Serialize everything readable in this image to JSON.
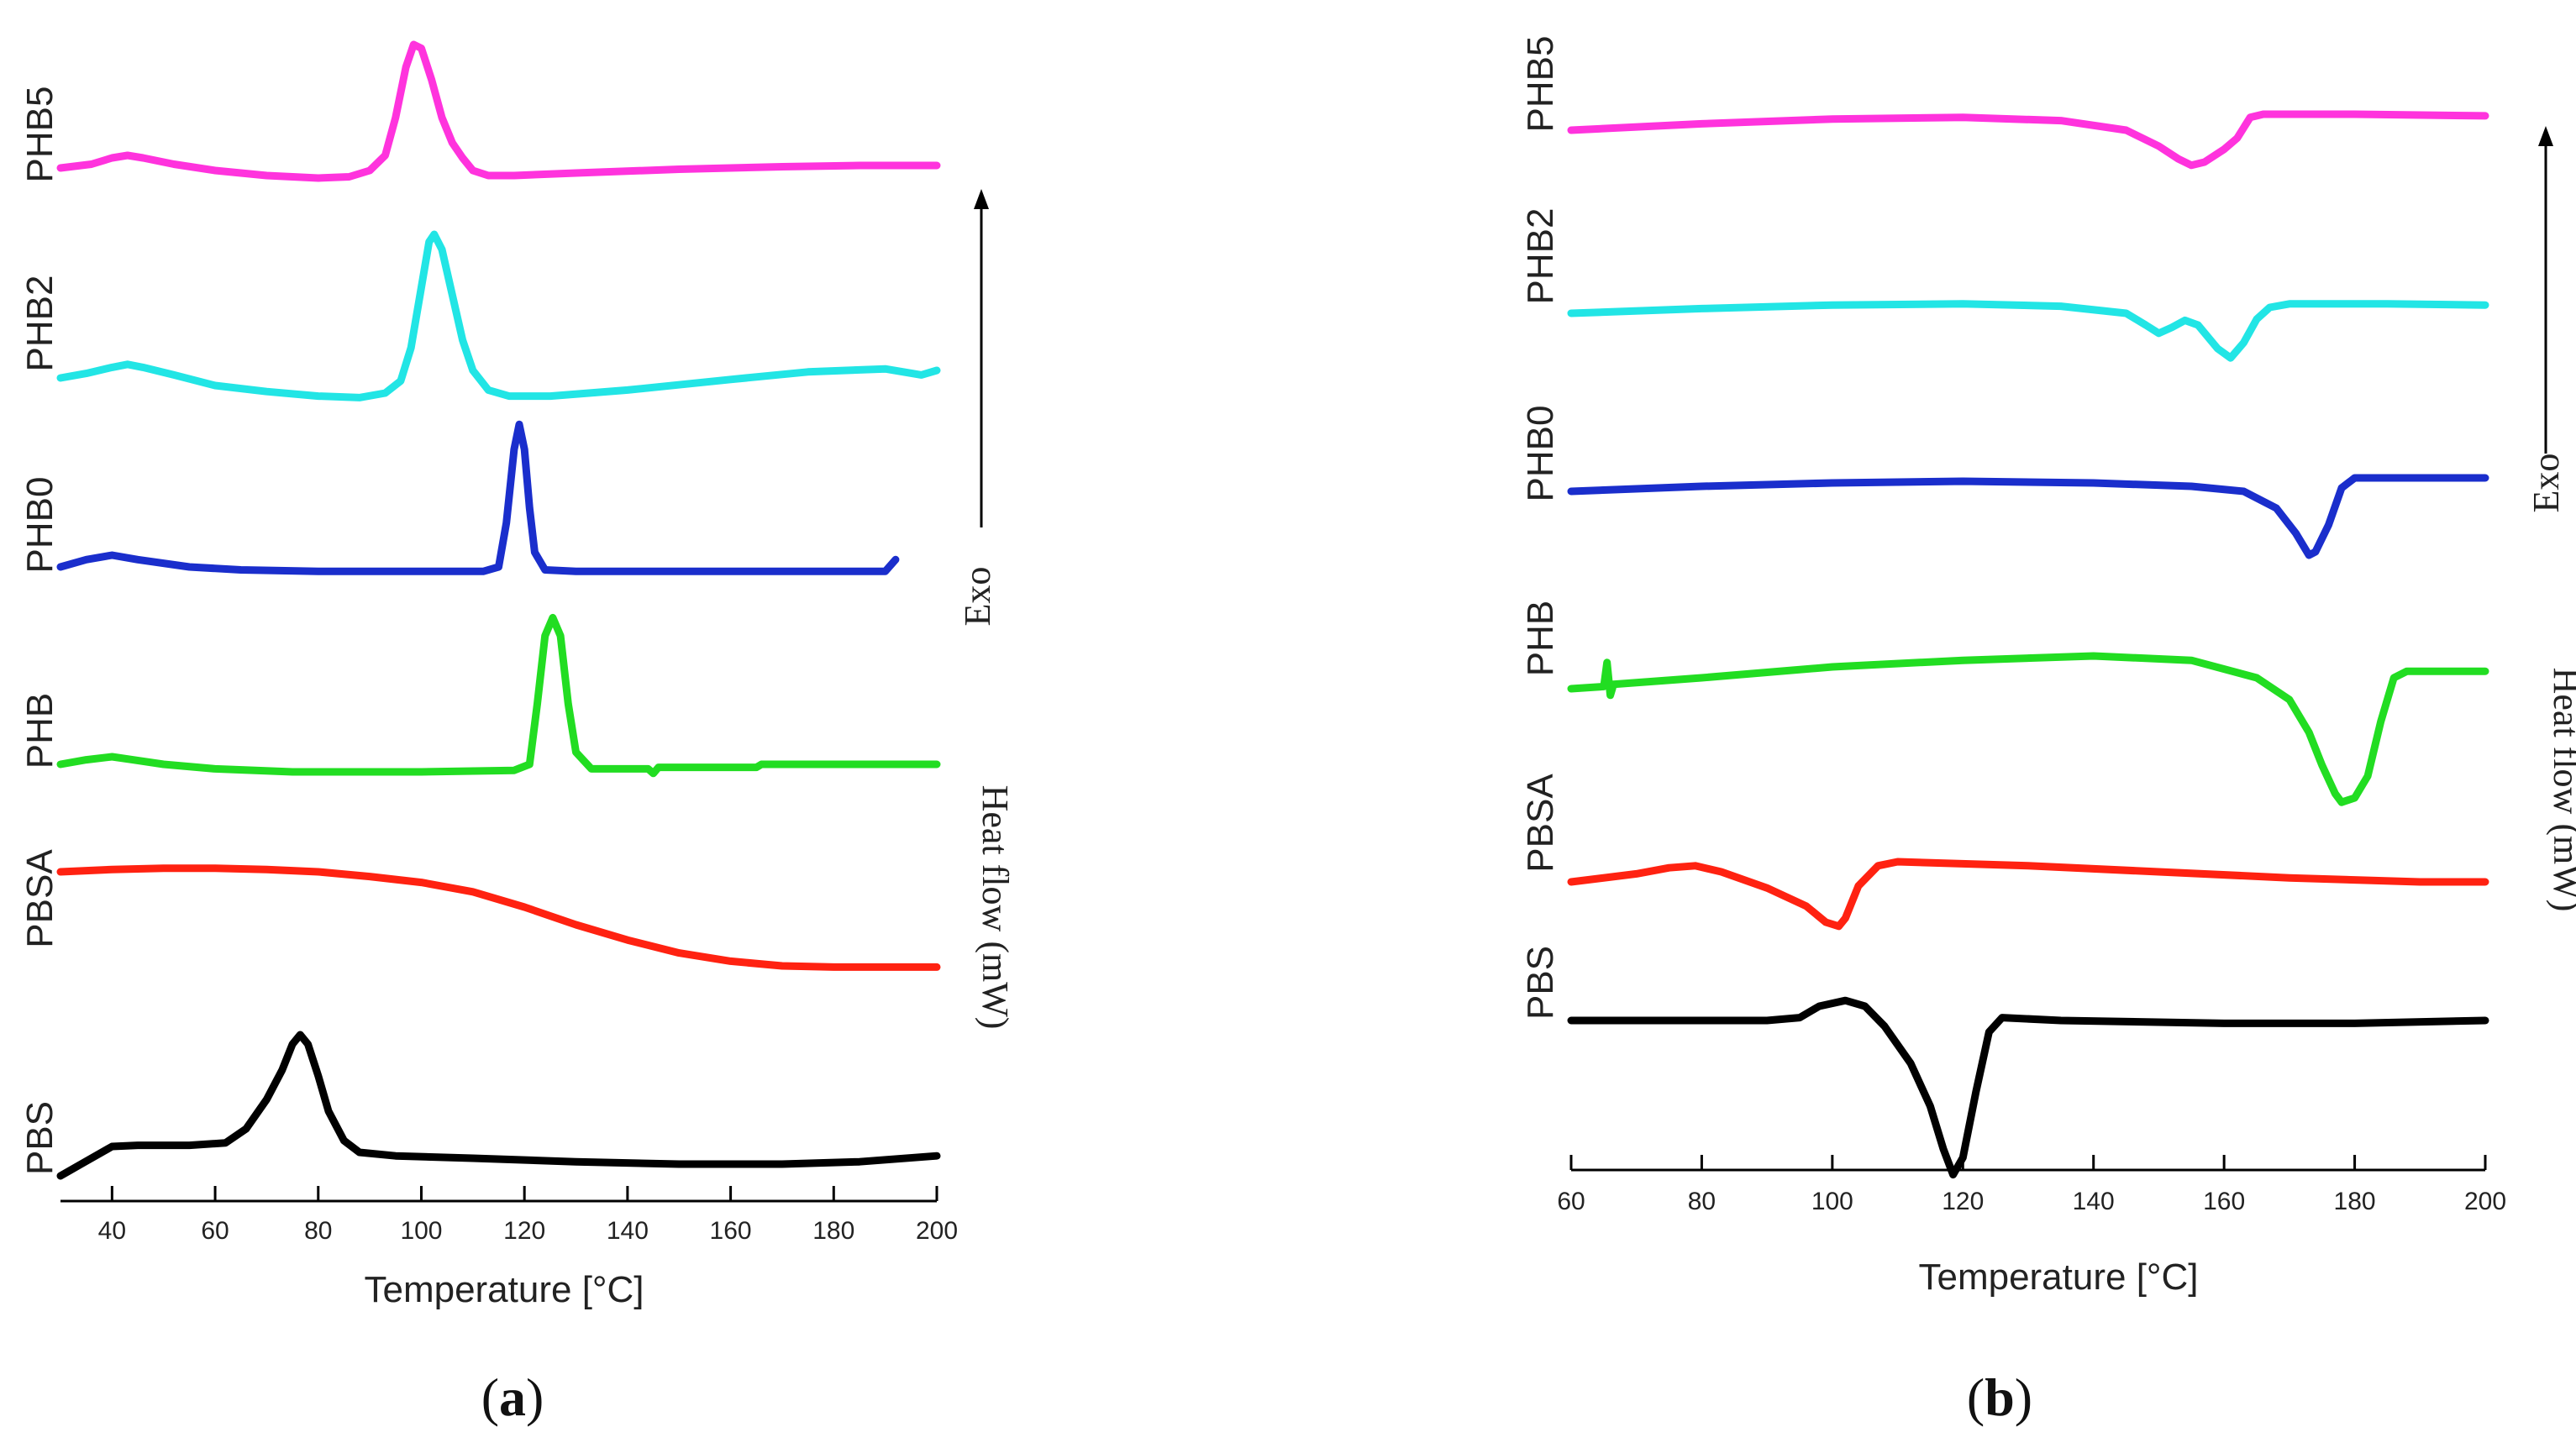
{
  "chart_data": [
    {
      "type": "line",
      "panel": "a",
      "panel_label_open": "(",
      "panel_label_letter": "a",
      "panel_label_close": ")",
      "xlabel": "Temperature [°C]",
      "ylabel": "Heat flow (mW)",
      "arrow_label": "Exo",
      "xlim": [
        30,
        200
      ],
      "ticks": [
        40,
        60,
        80,
        100,
        120,
        140,
        160,
        180,
        200
      ],
      "series": [
        {
          "name": "PHB5",
          "color": "#ff33dd",
          "points": [
            [
              30,
              0.0
            ],
            [
              36,
              0.03
            ],
            [
              40,
              0.08
            ],
            [
              43,
              0.1
            ],
            [
              46,
              0.08
            ],
            [
              52,
              0.03
            ],
            [
              60,
              -0.02
            ],
            [
              70,
              -0.06
            ],
            [
              80,
              -0.08
            ],
            [
              86,
              -0.07
            ],
            [
              90,
              -0.02
            ],
            [
              93,
              0.1
            ],
            [
              95,
              0.4
            ],
            [
              97,
              0.8
            ],
            [
              98.5,
              0.98
            ],
            [
              100,
              0.95
            ],
            [
              102,
              0.7
            ],
            [
              104,
              0.4
            ],
            [
              106,
              0.2
            ],
            [
              108,
              0.08
            ],
            [
              110,
              -0.02
            ],
            [
              113,
              -0.06
            ],
            [
              118,
              -0.06
            ],
            [
              130,
              -0.04
            ],
            [
              150,
              -0.01
            ],
            [
              170,
              0.01
            ],
            [
              185,
              0.02
            ],
            [
              200,
              0.02
            ]
          ]
        },
        {
          "name": "PHB2",
          "color": "#22e5e5",
          "points": [
            [
              30,
              0.0
            ],
            [
              35,
              0.03
            ],
            [
              40,
              0.07
            ],
            [
              43,
              0.09
            ],
            [
              46,
              0.07
            ],
            [
              52,
              0.02
            ],
            [
              60,
              -0.05
            ],
            [
              70,
              -0.09
            ],
            [
              80,
              -0.12
            ],
            [
              88,
              -0.13
            ],
            [
              93,
              -0.1
            ],
            [
              96,
              -0.02
            ],
            [
              98,
              0.2
            ],
            [
              100,
              0.6
            ],
            [
              101.5,
              0.9
            ],
            [
              102.5,
              0.95
            ],
            [
              104,
              0.85
            ],
            [
              106,
              0.55
            ],
            [
              108,
              0.25
            ],
            [
              110,
              0.05
            ],
            [
              113,
              -0.08
            ],
            [
              117,
              -0.12
            ],
            [
              125,
              -0.12
            ],
            [
              140,
              -0.08
            ],
            [
              160,
              -0.01
            ],
            [
              175,
              0.04
            ],
            [
              190,
              0.06
            ],
            [
              197,
              0.02
            ],
            [
              200,
              0.05
            ]
          ]
        },
        {
          "name": "PHB0",
          "color": "#1a2ecc",
          "points": [
            [
              30,
              0.0
            ],
            [
              35,
              0.05
            ],
            [
              40,
              0.08
            ],
            [
              45,
              0.05
            ],
            [
              55,
              0.0
            ],
            [
              65,
              -0.02
            ],
            [
              80,
              -0.03
            ],
            [
              100,
              -0.03
            ],
            [
              112,
              -0.03
            ],
            [
              115,
              0.0
            ],
            [
              116.5,
              0.3
            ],
            [
              118,
              0.8
            ],
            [
              119,
              0.97
            ],
            [
              120,
              0.8
            ],
            [
              121,
              0.4
            ],
            [
              122,
              0.1
            ],
            [
              124,
              -0.02
            ],
            [
              130,
              -0.03
            ],
            [
              150,
              -0.03
            ],
            [
              170,
              -0.03
            ],
            [
              185,
              -0.03
            ],
            [
              190,
              -0.03
            ],
            [
              192,
              0.05
            ]
          ]
        },
        {
          "name": "PHB",
          "color": "#22dd22",
          "points": [
            [
              30,
              0.0
            ],
            [
              35,
              0.03
            ],
            [
              40,
              0.05
            ],
            [
              44,
              0.03
            ],
            [
              50,
              0.0
            ],
            [
              60,
              -0.03
            ],
            [
              75,
              -0.05
            ],
            [
              100,
              -0.05
            ],
            [
              118,
              -0.04
            ],
            [
              121,
              0.0
            ],
            [
              122.5,
              0.4
            ],
            [
              124,
              0.85
            ],
            [
              125.5,
              0.97
            ],
            [
              127,
              0.85
            ],
            [
              128.5,
              0.4
            ],
            [
              130,
              0.08
            ],
            [
              133,
              -0.03
            ],
            [
              140,
              -0.03
            ],
            [
              144,
              -0.03
            ],
            [
              145,
              -0.06
            ],
            [
              146,
              -0.02
            ],
            [
              150,
              -0.02
            ],
            [
              165,
              -0.02
            ],
            [
              166,
              0.0
            ],
            [
              180,
              0.0
            ],
            [
              200,
              0.0
            ]
          ]
        },
        {
          "name": "PBSA",
          "color": "#ff2211",
          "points": [
            [
              30,
              0.05
            ],
            [
              40,
              0.07
            ],
            [
              50,
              0.08
            ],
            [
              60,
              0.08
            ],
            [
              70,
              0.07
            ],
            [
              80,
              0.05
            ],
            [
              90,
              0.01
            ],
            [
              100,
              -0.04
            ],
            [
              110,
              -0.12
            ],
            [
              120,
              -0.25
            ],
            [
              130,
              -0.4
            ],
            [
              140,
              -0.53
            ],
            [
              150,
              -0.64
            ],
            [
              160,
              -0.71
            ],
            [
              170,
              -0.75
            ],
            [
              180,
              -0.76
            ],
            [
              190,
              -0.76
            ],
            [
              200,
              -0.76
            ]
          ]
        },
        {
          "name": "PBS",
          "color": "#000000",
          "points": [
            [
              30,
              0.0
            ],
            [
              34,
              0.1
            ],
            [
              40,
              0.25
            ],
            [
              45,
              0.26
            ],
            [
              55,
              0.26
            ],
            [
              62,
              0.28
            ],
            [
              66,
              0.4
            ],
            [
              70,
              0.65
            ],
            [
              73,
              0.9
            ],
            [
              75,
              1.12
            ],
            [
              76.5,
              1.2
            ],
            [
              78,
              1.12
            ],
            [
              80,
              0.85
            ],
            [
              82,
              0.55
            ],
            [
              85,
              0.3
            ],
            [
              88,
              0.2
            ],
            [
              95,
              0.17
            ],
            [
              110,
              0.15
            ],
            [
              130,
              0.12
            ],
            [
              150,
              0.1
            ],
            [
              170,
              0.1
            ],
            [
              185,
              0.12
            ],
            [
              200,
              0.17
            ]
          ]
        }
      ]
    },
    {
      "type": "line",
      "panel": "b",
      "panel_label_open": "(",
      "panel_label_letter": "b",
      "panel_label_close": ")",
      "xlabel": "Temperature [°C]",
      "ylabel": "Heat flow (mW)",
      "arrow_label": "Exo",
      "xlim": [
        60,
        200
      ],
      "ticks": [
        60,
        80,
        100,
        120,
        140,
        160,
        180,
        200
      ],
      "series": [
        {
          "name": "PHB5",
          "color": "#ff33dd",
          "points": [
            [
              60,
              0.0
            ],
            [
              80,
              0.04
            ],
            [
              100,
              0.07
            ],
            [
              120,
              0.08
            ],
            [
              135,
              0.06
            ],
            [
              145,
              0.0
            ],
            [
              150,
              -0.1
            ],
            [
              153,
              -0.18
            ],
            [
              155,
              -0.22
            ],
            [
              157,
              -0.2
            ],
            [
              160,
              -0.12
            ],
            [
              162,
              -0.05
            ],
            [
              164,
              0.08
            ],
            [
              166,
              0.1
            ],
            [
              180,
              0.1
            ],
            [
              200,
              0.09
            ]
          ]
        },
        {
          "name": "PHB2",
          "color": "#22e5e5",
          "points": [
            [
              60,
              0.0
            ],
            [
              80,
              0.04
            ],
            [
              100,
              0.07
            ],
            [
              120,
              0.08
            ],
            [
              135,
              0.06
            ],
            [
              145,
              0.0
            ],
            [
              148,
              -0.1
            ],
            [
              150,
              -0.17
            ],
            [
              152,
              -0.12
            ],
            [
              154,
              -0.06
            ],
            [
              156,
              -0.1
            ],
            [
              159,
              -0.3
            ],
            [
              161,
              -0.38
            ],
            [
              163,
              -0.25
            ],
            [
              165,
              -0.05
            ],
            [
              167,
              0.05
            ],
            [
              170,
              0.08
            ],
            [
              185,
              0.08
            ],
            [
              200,
              0.07
            ]
          ]
        },
        {
          "name": "PHB0",
          "color": "#1a2ecc",
          "points": [
            [
              60,
              0.0
            ],
            [
              80,
              0.03
            ],
            [
              100,
              0.05
            ],
            [
              120,
              0.06
            ],
            [
              140,
              0.05
            ],
            [
              155,
              0.03
            ],
            [
              163,
              0.0
            ],
            [
              168,
              -0.1
            ],
            [
              171,
              -0.25
            ],
            [
              173,
              -0.38
            ],
            [
              174,
              -0.36
            ],
            [
              176,
              -0.2
            ],
            [
              178,
              0.02
            ],
            [
              180,
              0.08
            ],
            [
              190,
              0.08
            ],
            [
              200,
              0.08
            ]
          ]
        },
        {
          "name": "PHB",
          "color": "#22dd22",
          "points": [
            [
              60,
              0.0
            ],
            [
              65,
              0.01
            ],
            [
              65.5,
              0.12
            ],
            [
              66,
              -0.03
            ],
            [
              66.5,
              0.02
            ],
            [
              80,
              0.05
            ],
            [
              100,
              0.1
            ],
            [
              120,
              0.13
            ],
            [
              140,
              0.15
            ],
            [
              155,
              0.13
            ],
            [
              165,
              0.05
            ],
            [
              170,
              -0.05
            ],
            [
              173,
              -0.2
            ],
            [
              175,
              -0.35
            ],
            [
              177,
              -0.48
            ],
            [
              178,
              -0.52
            ],
            [
              180,
              -0.5
            ],
            [
              182,
              -0.4
            ],
            [
              184,
              -0.15
            ],
            [
              186,
              0.05
            ],
            [
              188,
              0.08
            ],
            [
              200,
              0.08
            ]
          ]
        },
        {
          "name": "PBSA",
          "color": "#ff2211",
          "points": [
            [
              60,
              0.0
            ],
            [
              70,
              0.04
            ],
            [
              75,
              0.07
            ],
            [
              79,
              0.08
            ],
            [
              83,
              0.05
            ],
            [
              90,
              -0.03
            ],
            [
              96,
              -0.12
            ],
            [
              99,
              -0.2
            ],
            [
              101,
              -0.22
            ],
            [
              102,
              -0.18
            ],
            [
              104,
              -0.02
            ],
            [
              107,
              0.08
            ],
            [
              110,
              0.1
            ],
            [
              130,
              0.08
            ],
            [
              150,
              0.05
            ],
            [
              170,
              0.02
            ],
            [
              190,
              0.0
            ],
            [
              200,
              0.0
            ]
          ]
        },
        {
          "name": "PBS",
          "color": "#000000",
          "points": [
            [
              60,
              0.0
            ],
            [
              80,
              0.0
            ],
            [
              90,
              0.0
            ],
            [
              95,
              0.01
            ],
            [
              98,
              0.05
            ],
            [
              102,
              0.07
            ],
            [
              105,
              0.05
            ],
            [
              108,
              -0.02
            ],
            [
              112,
              -0.15
            ],
            [
              115,
              -0.3
            ],
            [
              117,
              -0.45
            ],
            [
              118.5,
              -0.54
            ],
            [
              120,
              -0.48
            ],
            [
              122,
              -0.25
            ],
            [
              124,
              -0.04
            ],
            [
              126,
              0.01
            ],
            [
              135,
              0.0
            ],
            [
              160,
              -0.01
            ],
            [
              180,
              -0.01
            ],
            [
              200,
              0.0
            ]
          ]
        }
      ]
    }
  ]
}
